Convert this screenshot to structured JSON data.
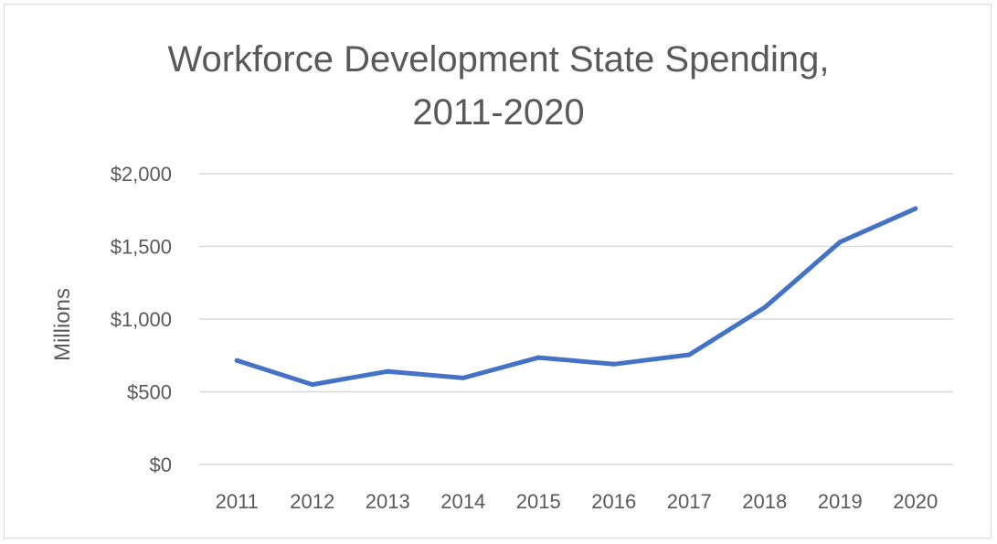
{
  "chart_data": {
    "type": "line",
    "title_lines": [
      "Workforce Development State Spending,",
      "2011-2020"
    ],
    "xlabel": "",
    "ylabel": "Millions",
    "categories": [
      "2011",
      "2012",
      "2013",
      "2014",
      "2015",
      "2016",
      "2017",
      "2018",
      "2019",
      "2020"
    ],
    "series": [
      {
        "values": [
          715,
          550,
          640,
          595,
          735,
          690,
          755,
          1080,
          1530,
          1760
        ]
      }
    ],
    "ylim": [
      0,
      2000
    ],
    "y_ticks": [
      0,
      500,
      1000,
      1500,
      2000
    ],
    "y_tick_labels": [
      "$0",
      "$500",
      "$1,000",
      "$1,500",
      "$2,000"
    ],
    "grid": true,
    "legend": "none",
    "colors": {
      "line": "#4472c4",
      "grid": "#d9d9d9",
      "text": "#595959"
    }
  }
}
